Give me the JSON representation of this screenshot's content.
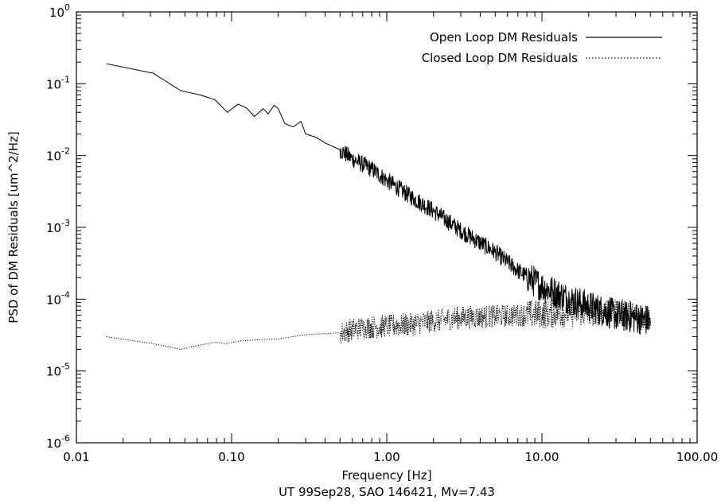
{
  "chart_data": {
    "type": "line",
    "title": "",
    "subtitle": "UT 99Sep28, SAO 146421, Mv=7.43",
    "xlabel": "Frequency [Hz]",
    "ylabel": "PSD of DM Residuals [um^2/Hz]",
    "xscale": "log",
    "yscale": "log",
    "xlim": [
      0.01,
      100
    ],
    "ylim": [
      1e-06,
      1
    ],
    "x_tick_labels": [
      "0.01",
      "0.10",
      "1.00",
      "10.00",
      "100.00"
    ],
    "y_tick_labels": [
      {
        "base": "10",
        "exp": "0"
      },
      {
        "base": "10",
        "exp": "-1"
      },
      {
        "base": "10",
        "exp": "-2"
      },
      {
        "base": "10",
        "exp": "-3"
      },
      {
        "base": "10",
        "exp": "-4"
      },
      {
        "base": "10",
        "exp": "-5"
      },
      {
        "base": "10",
        "exp": "-6"
      }
    ],
    "grid": false,
    "legend_position": "top-right",
    "series": [
      {
        "name": "Open Loop DM Residuals",
        "style": "solid",
        "color": "#000000",
        "points": [
          [
            0.0156,
            0.19
          ],
          [
            0.0313,
            0.14
          ],
          [
            0.047,
            0.08
          ],
          [
            0.0625,
            0.07
          ],
          [
            0.078,
            0.06
          ],
          [
            0.094,
            0.04
          ],
          [
            0.11,
            0.052
          ],
          [
            0.125,
            0.046
          ],
          [
            0.14,
            0.035
          ],
          [
            0.16,
            0.045
          ],
          [
            0.172,
            0.038
          ],
          [
            0.188,
            0.05
          ],
          [
            0.2,
            0.045
          ],
          [
            0.22,
            0.028
          ],
          [
            0.25,
            0.025
          ],
          [
            0.28,
            0.03
          ],
          [
            0.3,
            0.02
          ],
          [
            0.35,
            0.018
          ],
          [
            0.4,
            0.015
          ],
          [
            0.5,
            0.012
          ],
          [
            0.6,
            0.009
          ],
          [
            0.8,
            0.0065
          ],
          [
            1.0,
            0.0045
          ],
          [
            1.5,
            0.0025
          ],
          [
            2.0,
            0.0017
          ],
          [
            3.0,
            0.0009
          ],
          [
            5.0,
            0.00045
          ],
          [
            7.0,
            0.00025
          ],
          [
            10.0,
            0.00015
          ],
          [
            15.0,
            0.0001
          ],
          [
            20.0,
            8e-05
          ],
          [
            30.0,
            6e-05
          ],
          [
            40.0,
            5.5e-05
          ],
          [
            50.0,
            5e-05
          ]
        ]
      },
      {
        "name": "Closed Loop DM Residuals",
        "style": "dotted",
        "color": "#000000",
        "points": [
          [
            0.0156,
            3e-05
          ],
          [
            0.0313,
            2.4e-05
          ],
          [
            0.047,
            2e-05
          ],
          [
            0.0625,
            2.3e-05
          ],
          [
            0.078,
            2.5e-05
          ],
          [
            0.094,
            2.4e-05
          ],
          [
            0.11,
            2.6e-05
          ],
          [
            0.14,
            2.7e-05
          ],
          [
            0.2,
            2.8e-05
          ],
          [
            0.3,
            3.2e-05
          ],
          [
            0.5,
            3.4e-05
          ],
          [
            0.7,
            4e-05
          ],
          [
            1.0,
            4.2e-05
          ],
          [
            1.5,
            4.5e-05
          ],
          [
            2.0,
            5e-05
          ],
          [
            3.0,
            5.5e-05
          ],
          [
            5.0,
            5.8e-05
          ],
          [
            7.0,
            6e-05
          ],
          [
            10.0,
            6.2e-05
          ],
          [
            15.0,
            6.5e-05
          ],
          [
            20.0,
            6.5e-05
          ],
          [
            25.0,
            7e-05
          ],
          [
            30.0,
            6.5e-05
          ],
          [
            40.0,
            6e-05
          ],
          [
            50.0,
            5.5e-05
          ]
        ]
      }
    ]
  }
}
